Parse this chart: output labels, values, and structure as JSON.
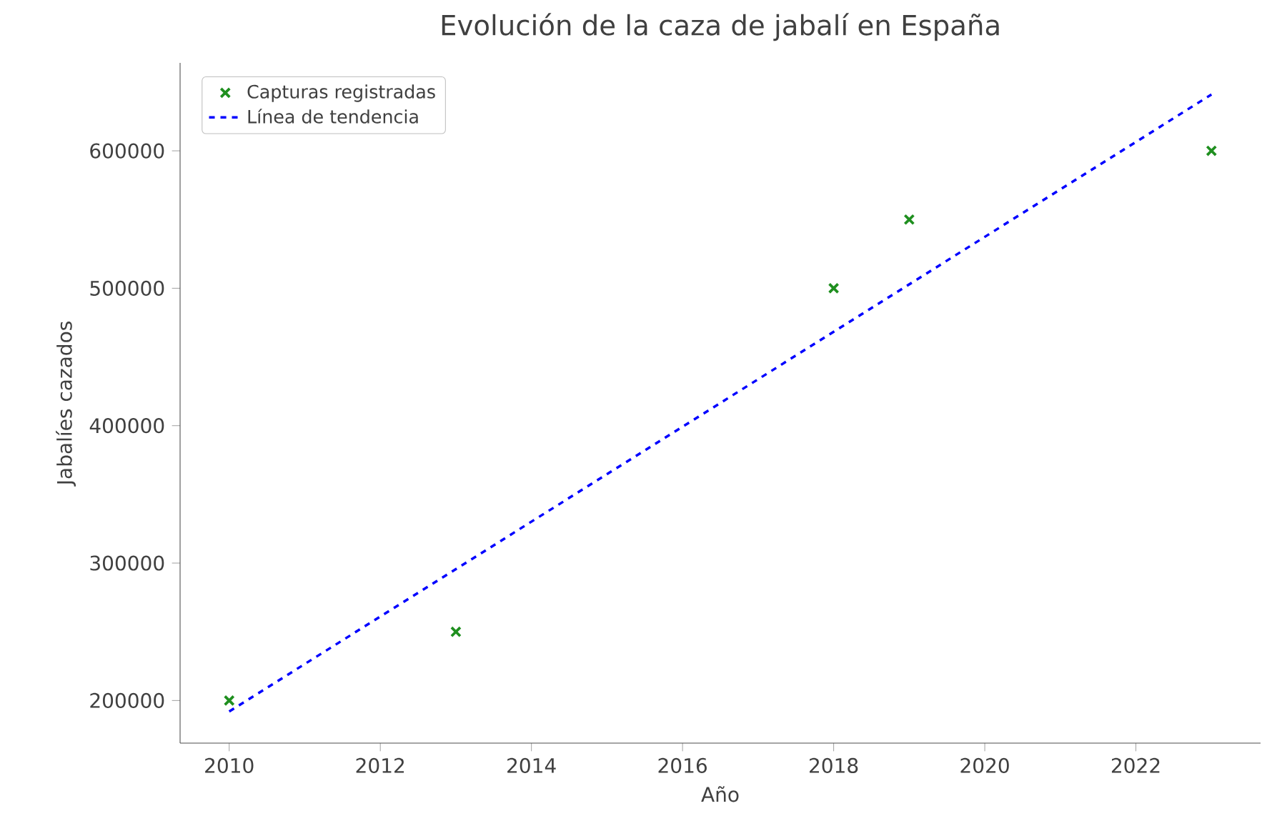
{
  "chart_data": {
    "type": "scatter",
    "title": "Evolución de la caza de jabalí en España",
    "xlabel": "Año",
    "ylabel": "Jabalíes cazados",
    "xlim": [
      2009.35,
      2023.65
    ],
    "ylim": [
      169000,
      664000
    ],
    "xticks": [
      2010,
      2012,
      2014,
      2016,
      2018,
      2020,
      2022
    ],
    "yticks": [
      200000,
      300000,
      400000,
      500000,
      600000
    ],
    "legend": "top left",
    "series": [
      {
        "name": "Capturas registradas",
        "marker": "cross",
        "color": "#1f8f1f",
        "x": [
          2010,
          2013,
          2018,
          2019,
          2023
        ],
        "values": [
          200000,
          250000,
          500000,
          550000,
          600000
        ]
      },
      {
        "name": "Línea de tendencia",
        "type": "line",
        "marker": "none",
        "line_style": "dashed",
        "color": "#0000ff",
        "x": [
          2010,
          2023
        ],
        "values": [
          192000,
          641000
        ]
      }
    ]
  }
}
